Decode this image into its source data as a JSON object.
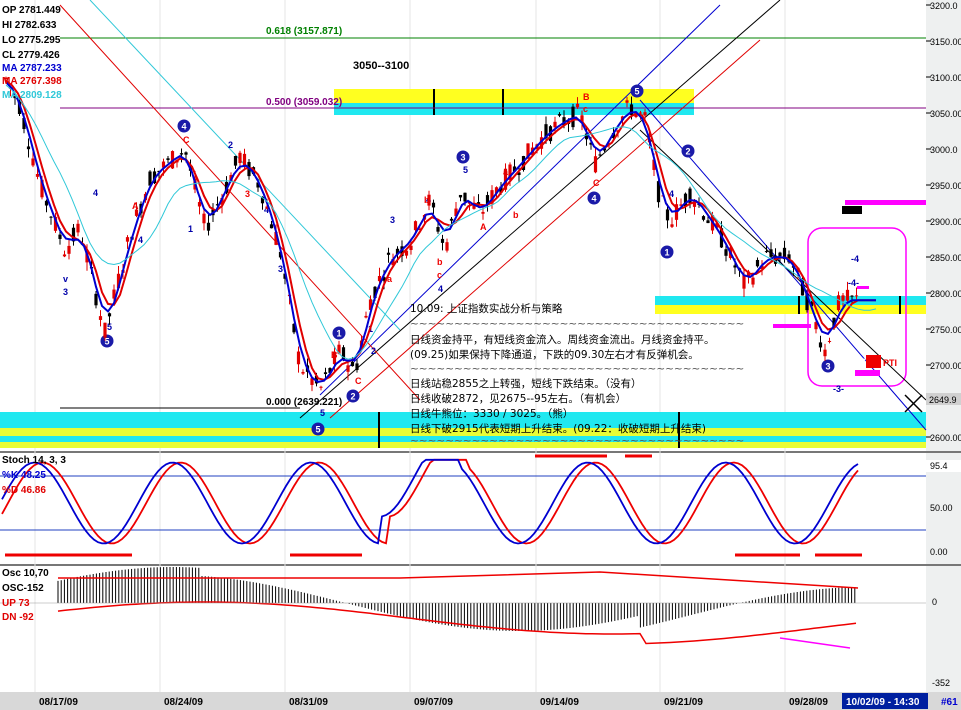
{
  "colors": {
    "up": "#e00000",
    "down": "#000000",
    "ma_fast": "#e00000",
    "ma_slow": "#0000d0",
    "ma_long": "#30c8d8",
    "cyan_band": "#20e8f0",
    "yellow_band": "#ffff20",
    "magenta": "#ff00ff",
    "fib_green": "#008000",
    "fib_purple": "#800080"
  },
  "ohlc": {
    "op": "OP 2781.449",
    "hi": "HI  2782.633",
    "lo": "LO  2775.295",
    "cl": "CL  2779.426",
    "ma1": "MA 2787.233",
    "ma2": "MA 2767.398",
    "ma3": "MA 2809.128"
  },
  "fib_labels": {
    "f618": "0.618 (3157.871)",
    "f500": "0.500 (3059.032)",
    "f000": "0.000 (2639.221)"
  },
  "target_range": "3050--3100",
  "analysis": {
    "title": "10.09: 上证指数实战分析与策略",
    "divider": "~~~~~~~~~~~~~~~~~~~~~~~~~~~~~~~~~~~~~~",
    "lines": [
      "日线资金持平，有短线资金流入。周线资金流出。月线资金持平。",
      "(09.25)如果保持下降通道，下跌的09.30左右才有反弹机会。",
      "日线站稳2855之上转强，短线下跌结束。（没有）",
      "日线收破2872，见2675--95左右。（有机会）",
      "日线牛熊位：3330 / 3025。（熊）",
      "日线下破2915代表短期上升结束。(09.22：收破短期上升结束)"
    ]
  },
  "price_axis": {
    "ticks": [
      "3200.0",
      "3150.00",
      "3100.00",
      "3050.00",
      "3000.0",
      "2950.00",
      "2900.00",
      "2850.00",
      "2800.00",
      "2750.00",
      "2700.00",
      "2650.0",
      "2600.00"
    ],
    "current_tag": "2649.9"
  },
  "wave_labels": [
    "v",
    "3",
    "4",
    "5",
    "5",
    "A",
    "C",
    "4",
    "1",
    "2",
    "3",
    "4",
    "3",
    "B",
    "5",
    "C",
    "B",
    "1",
    "2",
    "5",
    "3",
    "4",
    "b",
    "a",
    "a",
    "b",
    "c",
    "A",
    "b",
    "3",
    "5",
    "4",
    "2",
    "1",
    "3",
    "B",
    "c",
    "C",
    "4",
    "5",
    "2",
    "1",
    "4",
    "3",
    "-4",
    "-4-",
    "-3-",
    "PTI",
    "67"
  ],
  "stoch": {
    "title": "Stoch 14, 3, 3",
    "k_label": "%K  48.25",
    "d_label": "%D  46.86",
    "ticks": [
      "95.4",
      "50.00",
      "0.00"
    ]
  },
  "osc": {
    "title": "Osc 10,70",
    "label": "OSC-152",
    "up": "UP   73",
    "dn": "DN   -92",
    "ticks": [
      "0",
      "-352"
    ]
  },
  "date_axis": {
    "labels": [
      "08/17/09",
      "08/24/09",
      "08/31/09",
      "09/07/09",
      "09/14/09",
      "09/21/09",
      "09/28/09"
    ],
    "current": "10/02/09 - 14:30",
    "bar_id": "#61"
  }
}
